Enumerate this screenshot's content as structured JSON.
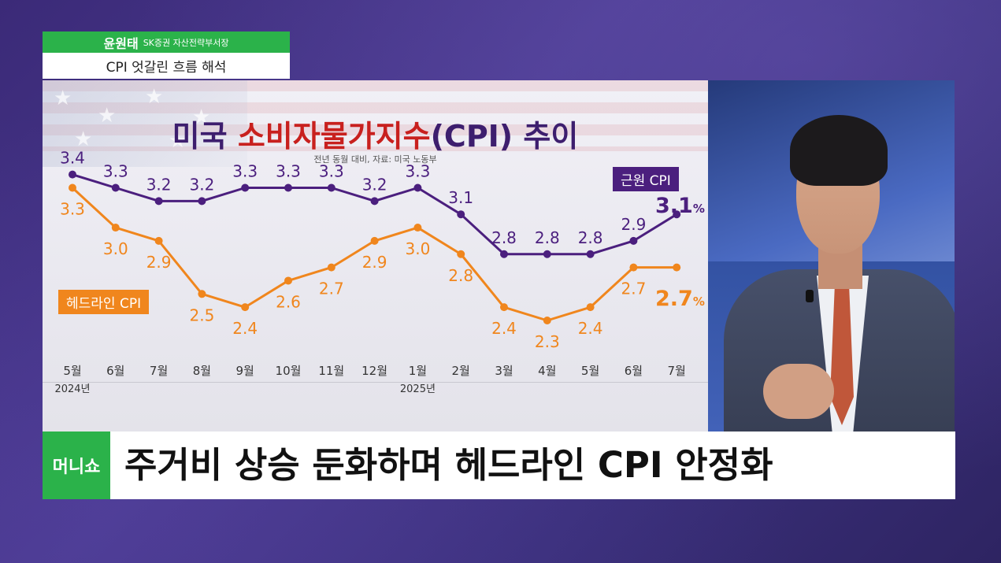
{
  "nametag": {
    "name": "윤원태",
    "role": "SK증권 자산전략부서장",
    "topic": "CPI 엇갈린 흐름 해석"
  },
  "chart_data": {
    "type": "line",
    "title_part1": "미국 ",
    "title_highlight": "소비자물가지수",
    "title_part2": "(CPI) 추이",
    "subtitle": "전년 동월 대비, 자료: 미국 노동부",
    "categories": [
      "5월",
      "6월",
      "7월",
      "8월",
      "9월",
      "10월",
      "11월",
      "12월",
      "1월",
      "2월",
      "3월",
      "4월",
      "5월",
      "6월",
      "7월"
    ],
    "year_labels": [
      {
        "index": 0,
        "label": "2024년"
      },
      {
        "index": 8,
        "label": "2025년"
      }
    ],
    "series": [
      {
        "name": "근원 CPI",
        "color": "#4b1f7e",
        "values": [
          3.4,
          3.3,
          3.2,
          3.2,
          3.3,
          3.3,
          3.3,
          3.2,
          3.3,
          3.1,
          2.8,
          2.8,
          2.8,
          2.9,
          3.1
        ],
        "value_labels": [
          "3.4",
          "3.3",
          "3.2",
          "3.2",
          "3.3",
          "3.3",
          "3.3",
          "3.2",
          "3.3",
          "3.1",
          "2.8",
          "2.8",
          "2.8",
          "2.9",
          ""
        ],
        "latest_value": "3.1",
        "unit": "%"
      },
      {
        "name": "헤드라인 CPI",
        "color": "#f0861d",
        "values": [
          3.3,
          3.0,
          2.9,
          2.5,
          2.4,
          2.6,
          2.7,
          2.9,
          3.0,
          2.8,
          2.4,
          2.3,
          2.4,
          2.7,
          2.7
        ],
        "value_labels": [
          "3.3",
          "3.0",
          "2.9",
          "2.5",
          "2.4",
          "2.6",
          "2.7",
          "2.9",
          "3.0",
          "2.8",
          "2.4",
          "2.3",
          "2.4",
          "2.7",
          ""
        ],
        "latest_value": "2.7",
        "unit": "%"
      }
    ],
    "grid": false,
    "legend": "inline"
  },
  "caption": {
    "logo": "머니쇼",
    "headline": "주거비 상승 둔화하며 헤드라인 CPI 안정화"
  }
}
